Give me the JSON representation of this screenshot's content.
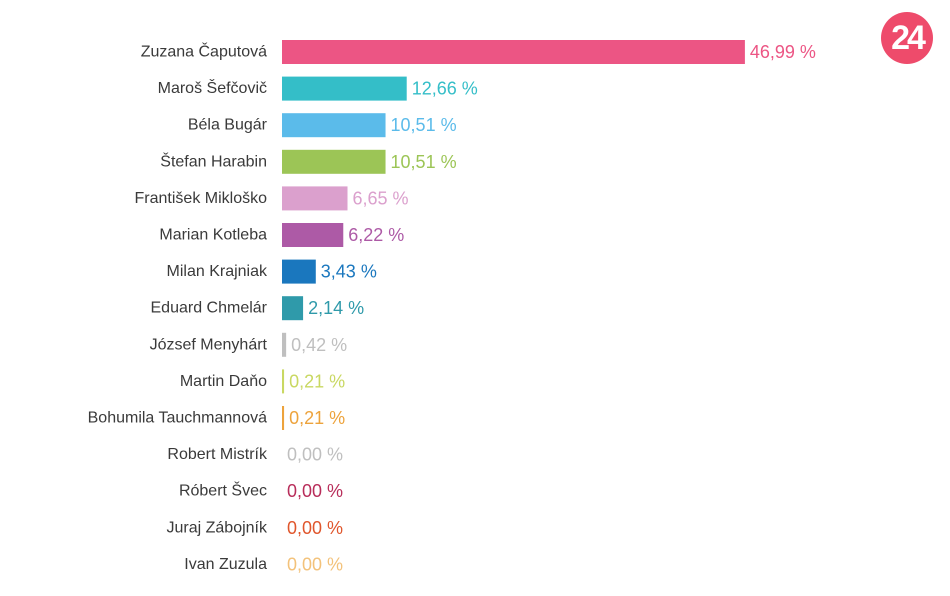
{
  "logo": {
    "text": "24"
  },
  "chart_data": {
    "type": "bar",
    "orientation": "horizontal",
    "categories": [
      "Zuzana Čaputová",
      "Maroš Šefčovič",
      "Béla Bugár",
      "Štefan Harabin",
      "František Mikloško",
      "Marian Kotleba",
      "Milan Krajniak",
      "Eduard Chmelár",
      "József Menyhárt",
      "Martin Daňo",
      "Bohumila Tauchmannová",
      "Robert Mistrík",
      "Róbert Švec",
      "Juraj Zábojník",
      "Ivan Zuzula"
    ],
    "values": [
      46.99,
      12.66,
      10.51,
      10.51,
      6.65,
      6.22,
      3.43,
      2.14,
      0.42,
      0.21,
      0.21,
      0.0,
      0.0,
      0.0,
      0.0
    ],
    "value_labels": [
      "46,99 %",
      "12,66 %",
      "10,51 %",
      "10,51 %",
      "6,65 %",
      "6,22 %",
      "3,43 %",
      "2,14 %",
      "0,42 %",
      "0,21 %",
      "0,21 %",
      "0,00 %",
      "0,00 %",
      "0,00 %",
      "0,00 %"
    ],
    "colors": [
      "#ec5584",
      "#34bec8",
      "#5bbbea",
      "#9cc556",
      "#dba0cd",
      "#ad5aa6",
      "#1a77be",
      "#2f9aaa",
      "#bfbfbf",
      "#c9d862",
      "#eda33c",
      "#bfbfbf",
      "#b82d5a",
      "#e0562c",
      "#f3c27a"
    ],
    "title": "",
    "xlabel": "",
    "ylabel": "",
    "xlim": [
      0,
      47
    ],
    "grid": false,
    "legend": "none"
  }
}
